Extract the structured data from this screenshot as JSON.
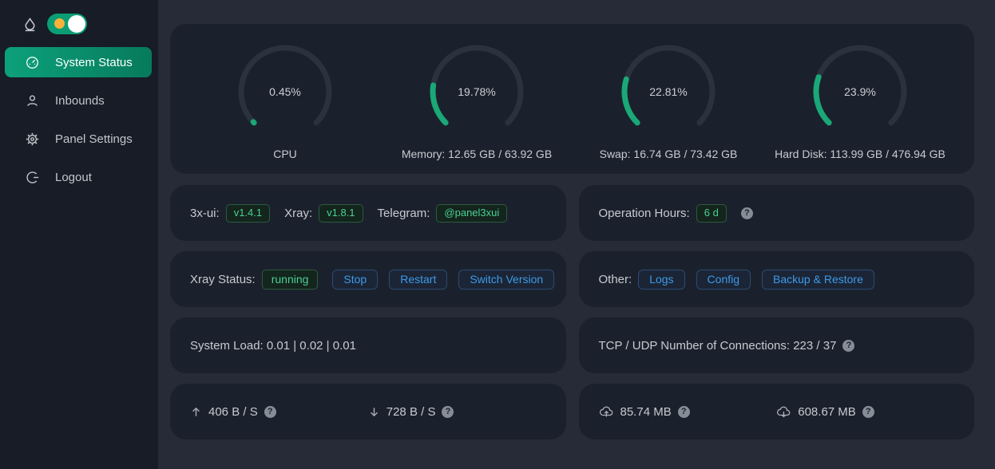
{
  "sidebar": {
    "items": [
      {
        "label": "System Status"
      },
      {
        "label": "Inbounds"
      },
      {
        "label": "Panel Settings"
      },
      {
        "label": "Logout"
      }
    ]
  },
  "gauges": [
    {
      "value": 0.45,
      "percent": "0.45%",
      "caption": "CPU"
    },
    {
      "value": 19.78,
      "percent": "19.78%",
      "caption": "Memory: 12.65 GB / 63.92 GB"
    },
    {
      "value": 22.81,
      "percent": "22.81%",
      "caption": "Swap: 16.74 GB / 73.42 GB"
    },
    {
      "value": 23.9,
      "percent": "23.9%",
      "caption": "Hard Disk: 113.99 GB / 476.94 GB"
    }
  ],
  "version_card": {
    "panel_label": "3x-ui:",
    "panel_version": "v1.4.1",
    "xray_label": "Xray:",
    "xray_version": "v1.8.1",
    "telegram_label": "Telegram:",
    "telegram_handle": "@panel3xui"
  },
  "uptime_card": {
    "label": "Operation Hours:",
    "value": "6 d"
  },
  "xray_card": {
    "label": "Xray Status:",
    "status": "running",
    "stop_button": "Stop",
    "restart_button": "Restart",
    "switch_button": "Switch Version"
  },
  "other_card": {
    "label": "Other:",
    "logs_button": "Logs",
    "config_button": "Config",
    "backup_button": "Backup & Restore"
  },
  "load_card": {
    "text": "System Load: 0.01 | 0.02 | 0.01"
  },
  "connections_card": {
    "text": "TCP / UDP Number of Connections: 223 / 37"
  },
  "speed_card": {
    "upload": "406 B / S",
    "download": "728 B / S"
  },
  "totals_card": {
    "upload": "85.74 MB",
    "download": "608.67 MB"
  },
  "icons": {
    "help_glyph": "?"
  },
  "colors": {
    "accent_green": "#0b9e74",
    "gauge_green": "#1aa876",
    "gauge_track": "#2b323e",
    "tag_green": "#4bd096",
    "button_blue": "#3e9ae8",
    "card_bg": "#1b212c",
    "page_bg": "#262b37",
    "sidebar_bg": "#171c26",
    "sun_orange": "#f7b239"
  }
}
